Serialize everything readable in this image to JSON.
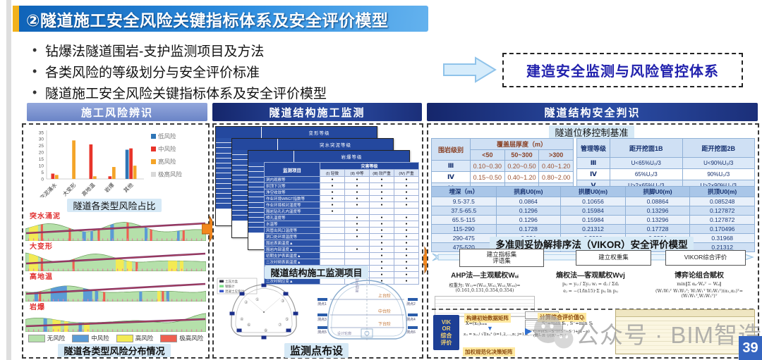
{
  "slide": {
    "title": "②隧道施工安全风险关键指标体系及安全评价模型",
    "bullets": [
      "钻爆法隧道围岩-支护监测项目及方法",
      "各类风险的等级划分与安全评价标准",
      "隧道施工安全风险关键指标体系及安全评价模型"
    ],
    "target_label": "建造安全监测与风险管控体系",
    "page_number": "39",
    "watermark_text": "公众号 · BIM智造"
  },
  "left_panel": {
    "header": "施工风险辨识",
    "chart_caption": "隧道各类型风险占比",
    "strips_caption": "隧道各类型风险分布情况",
    "strips": [
      {
        "label": "突水涌泥",
        "bands": [
          [
            "y",
            0.02,
            0.05
          ],
          [
            "r",
            0.085,
            0.012
          ],
          [
            "r",
            0.24,
            0.012
          ],
          [
            "b",
            0.315,
            0.02
          ],
          [
            "b",
            0.36,
            0.014
          ],
          [
            "r",
            0.4,
            0.012
          ],
          [
            "b",
            0.47,
            0.02
          ],
          [
            "r",
            0.56,
            0.012
          ],
          [
            "b",
            0.66,
            0.016
          ],
          [
            "r",
            0.69,
            0.012
          ],
          [
            "b",
            0.84,
            0.014
          ],
          [
            "r",
            0.87,
            0.012
          ]
        ]
      },
      {
        "label": "大变形",
        "bands": [
          [
            "y",
            0.02,
            0.05
          ],
          [
            "r",
            0.085,
            0.012
          ],
          [
            "r",
            0.26,
            0.012
          ],
          [
            "y",
            0.5,
            0.045
          ],
          [
            "y",
            0.56,
            0.03
          ],
          [
            "r",
            0.61,
            0.012
          ],
          [
            "y",
            0.79,
            0.05
          ],
          [
            "y",
            0.855,
            0.02
          ]
        ]
      },
      {
        "label": "高地温",
        "bands": [
          [
            "b",
            0.05,
            0.02
          ],
          [
            "r",
            0.075,
            0.012
          ],
          [
            "b",
            0.14,
            0.09
          ],
          [
            "b",
            0.32,
            0.05
          ],
          [
            "b",
            0.385,
            0.018
          ],
          [
            "r",
            0.43,
            0.012
          ],
          [
            "b",
            0.63,
            0.016
          ],
          [
            "y",
            0.73,
            0.018
          ],
          [
            "r",
            0.755,
            0.012
          ],
          [
            "b",
            0.78,
            0.016
          ]
        ]
      },
      {
        "label": "岩爆",
        "bands": [
          [
            "b",
            0.1,
            0.02
          ],
          [
            "y",
            0.15,
            0.045
          ],
          [
            "y",
            0.215,
            0.022
          ],
          [
            "b",
            0.295,
            0.018
          ],
          [
            "y",
            0.325,
            0.03
          ]
        ]
      }
    ],
    "strip_legend": [
      {
        "label": "无风险",
        "color": "#b5e0aa"
      },
      {
        "label": "中风险",
        "color": "#5b9bd5"
      },
      {
        "label": "高风险",
        "color": "#f3ea54"
      },
      {
        "label": "极高风险",
        "color": "#ee5f50"
      }
    ]
  },
  "chart_data": {
    "type": "bar",
    "title": "隧道各类型风险占比",
    "categories": [
      "突泥涌水",
      "大变形",
      "高地温",
      "岩爆",
      "其他"
    ],
    "series": [
      {
        "name": "低风险",
        "color": "#2e75b6",
        "values": [
          0,
          0,
          0,
          0,
          22
        ]
      },
      {
        "name": "中风险",
        "color": "#e8342a",
        "values": [
          4,
          0,
          26,
          2,
          23
        ]
      },
      {
        "name": "高风险",
        "color": "#f4a427",
        "values": [
          3,
          29,
          2,
          9,
          10
        ]
      },
      {
        "name": "极高风险",
        "color": "#d9d9d9",
        "values": [
          0,
          0,
          0,
          0,
          0
        ]
      }
    ],
    "xlabel": "",
    "ylabel": "",
    "ylim": [
      0,
      35
    ],
    "yticks": [
      0,
      5,
      10,
      15,
      20,
      25,
      30,
      35
    ],
    "legend_position": "right",
    "grid": false
  },
  "middle_panel": {
    "header": "隧道结构施工监测",
    "stack_labels": [
      "变形等级",
      "突水突泥等级",
      "岩爆等级"
    ],
    "front_table": {
      "item_header": "监测项目",
      "group_header": "灾害等级",
      "levels": [
        "(Ⅰ) 轻微",
        "(Ⅱ) 中等",
        "(Ⅲ) 较严重",
        "(Ⅳ) 严重"
      ],
      "rows": [
        [
          "洞内观察等",
          1,
          1,
          1,
          1
        ],
        [
          "拱顶下沉等",
          1,
          1,
          1,
          1
        ],
        [
          "净空收敛等",
          1,
          1,
          1,
          1
        ],
        [
          "作业环境WBGT指数等",
          1,
          1,
          1,
          1
        ],
        [
          "作业环境相对湿度等",
          1,
          1,
          1,
          1
        ],
        [
          "围岩钻孔孔内温度等",
          1,
          0,
          0,
          0
        ],
        [
          "喷孔温度等",
          0,
          1,
          1,
          1
        ],
        [
          "水温等",
          0,
          1,
          1,
          1
        ],
        [
          "风管出风口温度等",
          0,
          1,
          1,
          1
        ],
        [
          "洞口处环境温度等",
          0,
          1,
          1,
          1
        ],
        [
          "围岩表面温度▲",
          0,
          0,
          1,
          1
        ],
        [
          "围岩内部温度▲",
          0,
          1,
          1,
          1
        ],
        [
          "初期支护表面温度▲",
          0,
          0,
          1,
          1
        ],
        [
          "二次衬砌表面温度▲",
          0,
          0,
          1,
          1
        ],
        [
          "二次衬砌内部温度▲",
          0,
          0,
          1,
          1
        ],
        [
          "爆破振动速度▲",
          0,
          0,
          1,
          1
        ],
        [
          "二次衬砌应变▲",
          0,
          0,
          1,
          1
        ]
      ]
    },
    "table_caption": "隧道结构施工监测项目",
    "diagram_caption": "监测点布设",
    "left_diagram_legend": [
      "土压力盒",
      "钢筋计",
      "混凝土应变计"
    ],
    "right_diagram": {
      "bench_labels": [
        "上台阶",
        "中台阶",
        "下台阶"
      ],
      "point_labels": [
        "测点1",
        "测点2",
        "测点3",
        "测点4",
        "测点5",
        "测点6"
      ],
      "centerline_label": "断面中线",
      "outline_label": "设计轮廓"
    }
  },
  "right_panel": {
    "header": "隧道结构安全判识",
    "subtitle": "隧道位移控制基准",
    "thickness_table": {
      "row_header": "围岩级别",
      "group_header": "覆盖层厚度（m）",
      "cols": [
        "<50",
        "50~300",
        ">300"
      ],
      "rows": [
        [
          "Ⅲ",
          "0.10~0.30",
          "0.20~0.50",
          "0.40~1.20"
        ],
        [
          "Ⅳ",
          "0.15~0.50",
          "0.40~1.20",
          "0.80~2.00"
        ],
        [
          "Ⅴ",
          "0.20~0.80",
          "0.60~1.60",
          "1.00~3.00"
        ]
      ]
    },
    "management_table": {
      "cols": [
        "管理等级",
        "距开挖面1B",
        "距开挖面2B"
      ],
      "rows": [
        [
          "Ⅲ",
          "U<65%U₀/3",
          "U<90%U₀/3"
        ],
        [
          "Ⅳ",
          "65%U₀/3<U<2×65%U₀/3",
          "90%U₀/3<U<2×90%U₀/3"
        ],
        [
          "Ⅴ",
          "U>2×65%U₀/3",
          "U>2×90%U₀/3"
        ]
      ]
    },
    "depth_table": {
      "cols": [
        "埋深（m）",
        "拱肩U0(m)",
        "拱腰U0(m)",
        "拱脚U0(m)",
        "拱顶U0(m)"
      ],
      "rows": [
        [
          "9.5-37.5",
          "0.0864",
          "0.10656",
          "0.08864",
          "0.085248"
        ],
        [
          "37.5-65.5",
          "0.1296",
          "0.15984",
          "0.13296",
          "0.127872"
        ],
        [
          "65.5-115",
          "0.1296",
          "0.15984",
          "0.13296",
          "0.127872"
        ],
        [
          "115-290",
          "0.1728",
          "0.21312",
          "0.17728",
          "0.170496"
        ],
        [
          "290-475",
          "0.324",
          "0.3996",
          "0.3324",
          "0.31968"
        ],
        [
          "475-520",
          "0.216",
          "0.2664",
          "0.2216",
          "0.21312"
        ]
      ]
    },
    "vikor_caption": "多准则妥协解排序法（VIKOR）安全评价模型",
    "flow_steps": [
      "建立指标集\n评语集",
      "建立权重集",
      "VIKOR综合评价"
    ],
    "methods": [
      {
        "title": "AHP法—主观赋权Wᵤᵢ",
        "lines": [
          "权重为: W₁ⱼ=(Wᵤ₁,Wᵤ₂,Wᵤ₃,Wᵤ₄)=(0.161,0.131,0.354,0.354)"
        ]
      },
      {
        "title": "熵权法—客观赋权Wvj",
        "lines": [
          "pᵢⱼ = yᵢⱼ / Σyᵢⱼ        wⱼ = dⱼ / Σdⱼ",
          "eⱼ = −(1/ln15)·Σ pᵢⱼ ln pᵢⱼ"
        ]
      },
      {
        "title": "博弈论组合赋权",
        "lines": [
          "min‖Σ αₚ·Wₚᵀ − Wₚ‖",
          "(W₁W₁ᵀ W₁W₂ᵀ; W₂W₁ᵀ W₂W₂ᵀ)(α₁,α₂)ᵀ=(W₁W₁ᵀ,W₂W₂ᵀ)ᵀ"
        ]
      }
    ],
    "bottom": {
      "vikor_box_lines": [
        "VIK",
        "OR",
        "综合",
        "评价"
      ],
      "step1": "构建初始数据矩阵",
      "step2": "加权规范化决策矩阵",
      "step3": "计算综合评价值Qᵢ",
      "f1": "X=(xᵢⱼ)ₙₓₘ",
      "f2": "zᵢⱼ = xᵢⱼ / √Σxᵢⱼ²  (i=1,2,…,n; j=1,2,…,m)",
      "f3": "S⁺=max Sᵢ ,  S⁻=min Sᵢ",
      "f4": "Qᵢ=ν(Sᵢ−S⁻)/(S⁺−S⁻)+(1−ν)(Rᵢ−R⁻)/(R⁺−R⁻)"
    }
  }
}
